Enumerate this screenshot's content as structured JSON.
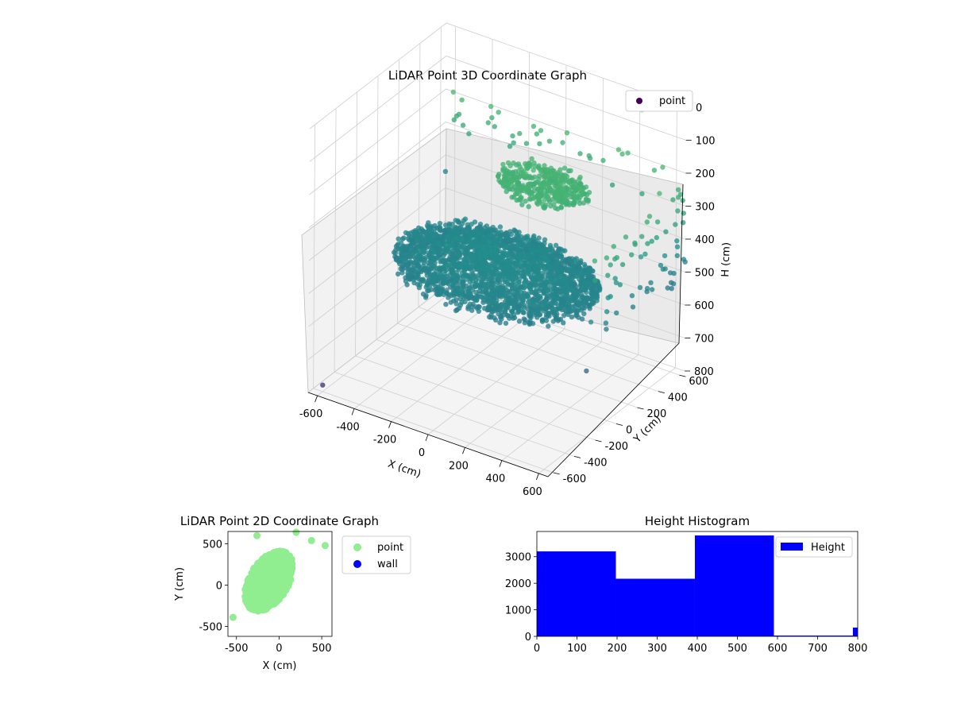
{
  "chart_data": [
    {
      "type": "scatter",
      "projection": "3d",
      "title": "LiDAR Point 3D Coordinate Graph",
      "xlabel": "X (cm)",
      "ylabel": "Y (cm)",
      "zlabel": "H (cm)",
      "xlim": [
        -650,
        650
      ],
      "ylim": [
        -650,
        650
      ],
      "zlim": [
        800,
        0
      ],
      "xticks": [
        -600,
        -400,
        -200,
        0,
        200,
        400,
        600
      ],
      "yticks": [
        -600,
        -400,
        -200,
        0,
        200,
        400,
        600
      ],
      "zticks": [
        0,
        100,
        200,
        300,
        400,
        500,
        600,
        700,
        800
      ],
      "grid": true,
      "legend": {
        "position": "top-right",
        "entries": [
          "point"
        ]
      },
      "colormap": "viridis",
      "series": [
        {
          "name": "point",
          "color": "#440154",
          "description_samples": [
            {
              "x": -300,
              "y": -200,
              "z": 450
            },
            {
              "x": 0,
              "y": 0,
              "z": 480
            },
            {
              "x": 300,
              "y": 200,
              "z": 470
            },
            {
              "x": 100,
              "y": 300,
              "z": 250
            },
            {
              "x": -100,
              "y": 200,
              "z": 240
            },
            {
              "x": 200,
              "y": -100,
              "z": 460
            },
            {
              "x": 500,
              "y": 500,
              "z": 200
            },
            {
              "x": -600,
              "y": 600,
              "z": 280
            }
          ]
        }
      ]
    },
    {
      "type": "scatter",
      "title": "LiDAR Point 2D Coordinate Graph",
      "xlabel": "X (cm)",
      "ylabel": "Y (cm)",
      "xlim": [
        -600,
        620
      ],
      "ylim": [
        -620,
        650
      ],
      "xticks": [
        -500,
        0,
        500
      ],
      "yticks": [
        -500,
        0,
        500
      ],
      "legend": {
        "position": "outside-right",
        "entries": [
          "point",
          "wall"
        ]
      },
      "series": [
        {
          "name": "point",
          "color": "#90ee90",
          "cloud": {
            "center": [
              -120,
              50
            ],
            "rx": 230,
            "ry": 400,
            "tilt_deg": -30
          },
          "outliers": [
            {
              "x": -260,
              "y": 600
            },
            {
              "x": 200,
              "y": 640
            },
            {
              "x": 380,
              "y": 540
            },
            {
              "x": 540,
              "y": 480
            },
            {
              "x": -540,
              "y": -390
            }
          ]
        },
        {
          "name": "wall",
          "color": "#0000ff",
          "values": []
        }
      ]
    },
    {
      "type": "bar",
      "subtype": "histogram",
      "title": "Height Histogram",
      "xlim": [
        0,
        800
      ],
      "ylim": [
        0,
        3950
      ],
      "xticks": [
        0,
        100,
        200,
        300,
        400,
        500,
        600,
        700,
        800
      ],
      "yticks": [
        0,
        1000,
        2000,
        3000
      ],
      "legend": {
        "position": "top-right",
        "entries": [
          "Height"
        ]
      },
      "series": [
        {
          "name": "Height",
          "color": "#0000ff",
          "bins": [
            {
              "start": 0,
              "end": 197,
              "count": 3200
            },
            {
              "start": 197,
              "end": 394,
              "count": 2170
            },
            {
              "start": 394,
              "end": 591,
              "count": 3800
            },
            {
              "start": 591,
              "end": 788,
              "count": 30
            },
            {
              "start": 788,
              "end": 985,
              "count": 330
            }
          ]
        }
      ]
    }
  ]
}
